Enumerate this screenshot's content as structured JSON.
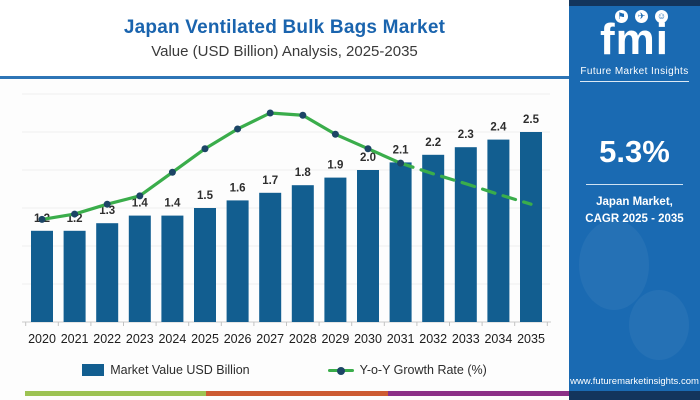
{
  "header": {
    "title": "Japan Ventilated Bulk Bags Market",
    "subtitle": "Value (USD Billion) Analysis, 2025-2035"
  },
  "chart_data": {
    "type": "bar",
    "title": "Japan Ventilated Bulk Bags Market Value (USD Billion) Analysis, 2025-2035",
    "categories": [
      "2020",
      "2021",
      "2022",
      "2023",
      "2024",
      "2025",
      "2026",
      "2027",
      "2028",
      "2029",
      "2030",
      "2031",
      "2032",
      "2033",
      "2034",
      "2035"
    ],
    "series": [
      {
        "name": "Market Value USD Billion",
        "type": "bar",
        "values": [
          1.2,
          1.2,
          1.3,
          1.4,
          1.4,
          1.5,
          1.6,
          1.7,
          1.8,
          1.9,
          2.0,
          2.1,
          2.2,
          2.3,
          2.4,
          2.5
        ],
        "labels": [
          "1.2",
          "1.2",
          "1.3",
          "1.4",
          "1.4",
          "1.5",
          "1.6",
          "1.7",
          "1.8",
          "1.9",
          "2.0",
          "2.1",
          "2.2",
          "2.3",
          "2.4",
          "2.5"
        ],
        "color": "#125e90"
      },
      {
        "name": "Y-o-Y Growth Rate (%)",
        "type": "line",
        "note": "secondary axis unlabeled; values estimated as plot heights on the bar value scale",
        "values": [
          1.35,
          1.42,
          1.55,
          1.66,
          1.97,
          2.28,
          2.54,
          2.75,
          2.72,
          2.47,
          2.28,
          2.09,
          1.95,
          1.82,
          1.68,
          1.55
        ],
        "solid_with_markers_through": "2031",
        "dashed_from": "2031",
        "color": "#3aad4b",
        "marker_color": "#1c4566"
      }
    ],
    "xlabel": "",
    "ylabel": "",
    "ylim": [
      0,
      3
    ],
    "gridline_step": 0.5,
    "y_axis_tick_labels_visible": false,
    "grid": "horizontal faint",
    "legend_position": "bottom"
  },
  "legend": {
    "bar_label": "Market Value USD Billion",
    "line_label": "Y-o-Y Growth Rate (%)"
  },
  "footer_strip_colors": [
    "#9dc353",
    "#cd5b32",
    "#8c3087"
  ],
  "sidebar": {
    "logo_text": "fmi",
    "logo_caption": "Future Market Insights",
    "logo_icon_glyphs": [
      "⚑",
      "✈",
      "☺"
    ],
    "cagr_value": "5.3%",
    "cagr_label_line1": "Japan Market,",
    "cagr_label_line2": "CAGR 2025 - 2035",
    "website": "www.futuremarketinsights.com",
    "panel_color": "#1a6ab2",
    "band_color": "#13355c"
  }
}
